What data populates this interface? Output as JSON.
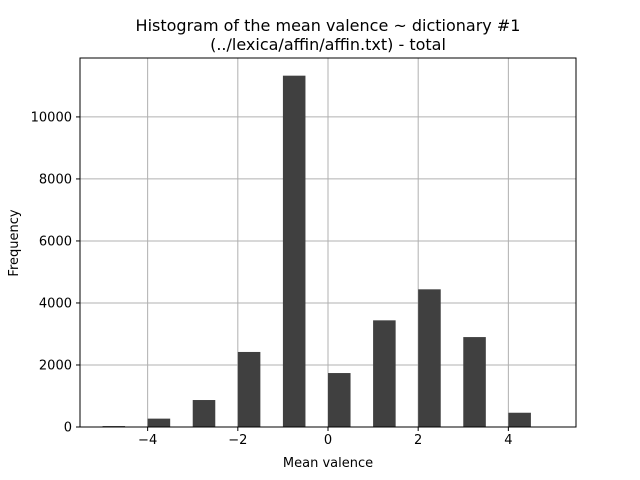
{
  "chart_data": {
    "type": "bar",
    "title": "Histogram of the mean valence ~ dictionary #1",
    "subtitle": "(../lexica/affin/affin.txt) - total",
    "xlabel": "Mean valence",
    "ylabel": "Frequency",
    "bar_color": "#404040",
    "grid": true,
    "xlim": [
      -5.5,
      5.5
    ],
    "ylim": [
      0,
      11900
    ],
    "x_ticks": [
      -4,
      -2,
      0,
      2,
      4
    ],
    "x_tick_labels": [
      "−4",
      "−2",
      "0",
      "2",
      "4"
    ],
    "y_ticks": [
      0,
      2000,
      4000,
      6000,
      8000,
      10000
    ],
    "y_tick_labels": [
      "0",
      "2000",
      "4000",
      "6000",
      "8000",
      "10000"
    ],
    "bar_width": 0.5,
    "x": [
      -4.75,
      -3.75,
      -2.75,
      -1.75,
      -0.75,
      0.25,
      1.25,
      2.25,
      3.25,
      4.25
    ],
    "values": [
      30,
      270,
      870,
      2420,
      11330,
      1740,
      3440,
      4440,
      2900,
      460
    ]
  }
}
